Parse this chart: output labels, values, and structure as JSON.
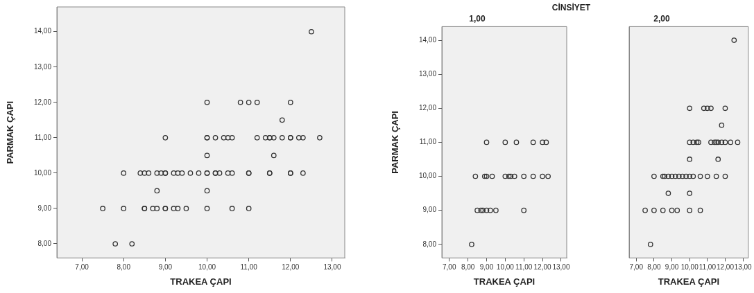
{
  "chart_data": [
    {
      "type": "scatter",
      "xlabel": "TRAKEA ÇAPI",
      "ylabel": "PARMAK ÇAPI",
      "marker": "circle",
      "grid": false,
      "legend": false,
      "xlim": [
        6.4,
        13.3
      ],
      "ylim": [
        7.6,
        14.7
      ],
      "xticks": [
        {
          "value": 7,
          "label": "7,00"
        },
        {
          "value": 8,
          "label": "8,00"
        },
        {
          "value": 9,
          "label": "9,00"
        },
        {
          "value": 10,
          "label": "10,00"
        },
        {
          "value": 11,
          "label": "11,00"
        },
        {
          "value": 12,
          "label": "12,00"
        },
        {
          "value": 13,
          "label": "13,00"
        }
      ],
      "yticks": [
        {
          "value": 8,
          "label": "8,00"
        },
        {
          "value": 9,
          "label": "9,00"
        },
        {
          "value": 10,
          "label": "10,00"
        },
        {
          "value": 11,
          "label": "11,00"
        },
        {
          "value": 12,
          "label": "12,00"
        },
        {
          "value": 13,
          "label": "13,00"
        },
        {
          "value": 14,
          "label": "14,00"
        }
      ],
      "series": [
        {
          "color": "#333333",
          "x": [
            9,
            10,
            10.6,
            11.5,
            12,
            12.2,
            8.4,
            8.9,
            9,
            9.3,
            10,
            10.2,
            10.3,
            10.5,
            11,
            11.5,
            12,
            12.3,
            8.5,
            8.7,
            8.8,
            9,
            9.2,
            9.5,
            11,
            8.2,
            12.5,
            10,
            10.8,
            11,
            11.2,
            12,
            11.8,
            10,
            10.2,
            10.4,
            10.5,
            11.2,
            11.4,
            11.5,
            11.6,
            11.8,
            12,
            12.3,
            12.7,
            10,
            11.6,
            8,
            8.5,
            8.6,
            8.8,
            9,
            9.2,
            9.4,
            9.6,
            9.8,
            10,
            10.2,
            10.6,
            11,
            11.5,
            12,
            8.8,
            10,
            7.5,
            8,
            8.5,
            9,
            9.3,
            10,
            10.6,
            7.8
          ],
          "values": [
            11,
            11,
            11,
            11,
            11,
            11,
            10,
            10,
            10,
            10,
            10,
            10,
            10,
            10,
            10,
            10,
            10,
            10,
            9,
            9,
            9,
            9,
            9,
            9,
            9,
            8,
            14,
            12,
            12,
            12,
            12,
            12,
            11.5,
            11,
            11,
            11,
            11,
            11,
            11,
            11,
            11,
            11,
            11,
            11,
            11,
            10.5,
            10.5,
            10,
            10,
            10,
            10,
            10,
            10,
            10,
            10,
            10,
            10,
            10,
            10,
            10,
            10,
            10,
            9.5,
            9.5,
            9,
            9,
            9,
            9,
            9,
            9,
            9,
            8
          ]
        }
      ]
    },
    {
      "type": "scatter",
      "title": "CİNSİYET",
      "subtitle": "1,00",
      "xlabel": "TRAKEA ÇAPI",
      "ylabel": "PARMAK ÇAPI",
      "marker": "circle",
      "grid": false,
      "legend": false,
      "xlim": [
        6.6,
        13.3
      ],
      "ylim": [
        7.6,
        14.4
      ],
      "xticks": [
        {
          "value": 7,
          "label": "7,00"
        },
        {
          "value": 8,
          "label": "8,00"
        },
        {
          "value": 9,
          "label": "9,00"
        },
        {
          "value": 10,
          "label": "10,00"
        },
        {
          "value": 11,
          "label": "11,00"
        },
        {
          "value": 12,
          "label": "12,00"
        },
        {
          "value": 13,
          "label": "13,00"
        }
      ],
      "yticks": [
        {
          "value": 8,
          "label": "8,00"
        },
        {
          "value": 9,
          "label": "9,00"
        },
        {
          "value": 10,
          "label": "10,00"
        },
        {
          "value": 11,
          "label": "11,00"
        },
        {
          "value": 12,
          "label": "12,00"
        },
        {
          "value": 13,
          "label": "13,00"
        },
        {
          "value": 14,
          "label": "14,00"
        }
      ],
      "series": [
        {
          "color": "#333333",
          "x": [
            9,
            10,
            10.6,
            11.5,
            12,
            12.2,
            8.4,
            8.9,
            9,
            9.3,
            10,
            10.2,
            10.3,
            10.5,
            11,
            11.5,
            12,
            12.3,
            8.5,
            8.7,
            8.8,
            9,
            9.2,
            9.5,
            11,
            8.2
          ],
          "values": [
            11,
            11,
            11,
            11,
            11,
            11,
            10,
            10,
            10,
            10,
            10,
            10,
            10,
            10,
            10,
            10,
            10,
            10,
            9,
            9,
            9,
            9,
            9,
            9,
            9,
            8
          ]
        }
      ]
    },
    {
      "type": "scatter",
      "subtitle": "2,00",
      "xlabel": "TRAKEA ÇAPI",
      "marker": "circle",
      "grid": false,
      "legend": false,
      "tick_labels": "x",
      "xlim": [
        6.6,
        13.3
      ],
      "ylim": [
        7.6,
        14.4
      ],
      "xticks": [
        {
          "value": 7,
          "label": "7,00"
        },
        {
          "value": 8,
          "label": "8,00"
        },
        {
          "value": 9,
          "label": "9,00"
        },
        {
          "value": 10,
          "label": "10,00"
        },
        {
          "value": 11,
          "label": "11,00"
        },
        {
          "value": 12,
          "label": "12,00"
        },
        {
          "value": 13,
          "label": "13,00"
        }
      ],
      "series": [
        {
          "color": "#333333",
          "x": [
            12.5,
            10,
            10.8,
            11,
            11.2,
            12,
            11.8,
            10,
            10.2,
            10.4,
            10.5,
            11.2,
            11.4,
            11.5,
            11.6,
            11.8,
            12,
            12.3,
            12.7,
            10,
            11.6,
            8,
            8.5,
            8.6,
            8.8,
            9,
            9.2,
            9.4,
            9.6,
            9.8,
            10,
            10.2,
            10.6,
            11,
            11.5,
            12,
            8.8,
            10,
            7.5,
            8,
            8.5,
            9,
            9.3,
            10,
            10.6,
            7.8
          ],
          "values": [
            14,
            12,
            12,
            12,
            12,
            12,
            11.5,
            11,
            11,
            11,
            11,
            11,
            11,
            11,
            11,
            11,
            11,
            11,
            11,
            10.5,
            10.5,
            10,
            10,
            10,
            10,
            10,
            10,
            10,
            10,
            10,
            10,
            10,
            10,
            10,
            10,
            10,
            9.5,
            9.5,
            9,
            9,
            9,
            9,
            9,
            9,
            9,
            8
          ]
        }
      ]
    }
  ]
}
